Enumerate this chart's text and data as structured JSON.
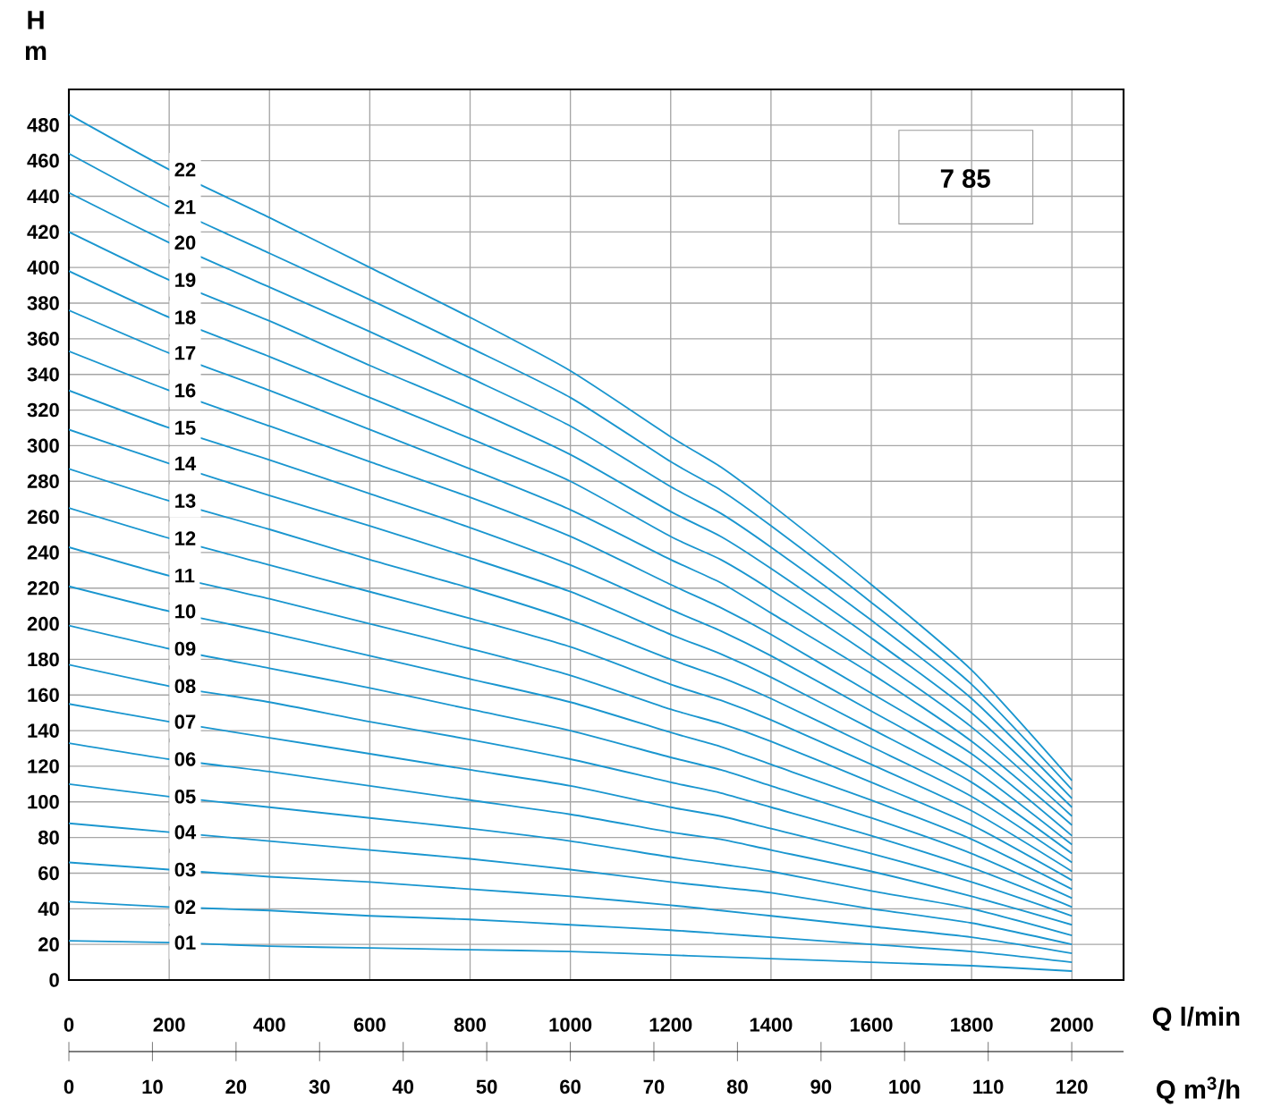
{
  "chart_data": {
    "type": "line",
    "xlabel": "Q l/min",
    "ylabel": "H m",
    "x2label": "Q m$^{3}$/h",
    "annotations": [
      "7 85"
    ],
    "x": [
      0,
      200,
      400,
      600,
      800,
      1000,
      1200,
      1300,
      1400,
      1600,
      1800,
      2000
    ],
    "xlim": [
      0,
      2103
    ],
    "ylim": [
      0,
      500
    ],
    "xticks": [
      0,
      200,
      400,
      600,
      800,
      1000,
      1200,
      1400,
      1600,
      1800,
      2000
    ],
    "yticks": [
      0,
      20,
      40,
      60,
      80,
      100,
      120,
      140,
      160,
      180,
      200,
      220,
      240,
      260,
      280,
      300,
      320,
      340,
      360,
      380,
      400,
      420,
      440,
      460,
      480
    ],
    "x2lim": [
      0,
      126.2
    ],
    "x2ticks": [
      0,
      10,
      20,
      30,
      40,
      50,
      60,
      70,
      80,
      90,
      100,
      110,
      120
    ],
    "grid": true,
    "marker": "none",
    "line_style": "solid",
    "series": [
      {
        "name": "01",
        "color": "#1a96cf",
        "values": [
          22,
          21,
          19,
          18,
          17,
          16,
          14,
          13,
          12,
          10,
          8,
          5
        ]
      },
      {
        "name": "02",
        "color": "#1a96cf",
        "values": [
          44,
          41,
          39,
          36,
          34,
          31,
          28,
          26,
          24,
          20,
          16,
          10
        ]
      },
      {
        "name": "03",
        "color": "#1a96cf",
        "values": [
          66,
          62,
          58,
          55,
          51,
          47,
          42,
          39,
          36,
          30,
          24,
          15
        ]
      },
      {
        "name": "04",
        "color": "#1a96cf",
        "values": [
          88,
          83,
          78,
          73,
          68,
          62,
          55,
          52,
          49,
          40,
          32,
          20
        ]
      },
      {
        "name": "05",
        "color": "#1a96cf",
        "values": [
          110,
          103,
          97,
          91,
          85,
          78,
          69,
          65,
          61,
          50,
          40,
          25
        ]
      },
      {
        "name": "06",
        "color": "#1a96cf",
        "values": [
          133,
          124,
          117,
          109,
          101,
          93,
          83,
          79,
          73,
          61,
          47,
          31
        ]
      },
      {
        "name": "07",
        "color": "#1a96cf",
        "values": [
          155,
          145,
          136,
          127,
          118,
          109,
          97,
          92,
          85,
          71,
          55,
          36
        ]
      },
      {
        "name": "08",
        "color": "#1a96cf",
        "values": [
          177,
          165,
          156,
          145,
          135,
          124,
          111,
          105,
          97,
          81,
          63,
          41
        ]
      },
      {
        "name": "09",
        "color": "#1a96cf",
        "values": [
          199,
          186,
          175,
          164,
          152,
          140,
          125,
          118,
          109,
          91,
          71,
          46
        ]
      },
      {
        "name": "10",
        "color": "#1a96cf",
        "values": [
          221,
          207,
          195,
          182,
          169,
          156,
          139,
          131,
          121,
          101,
          79,
          51
        ]
      },
      {
        "name": "11",
        "color": "#1a96cf",
        "values": [
          243,
          227,
          214,
          200,
          186,
          171,
          152,
          144,
          134,
          111,
          87,
          56
        ]
      },
      {
        "name": "12",
        "color": "#1a96cf",
        "values": [
          265,
          248,
          233,
          218,
          203,
          187,
          166,
          157,
          146,
          121,
          95,
          61
        ]
      },
      {
        "name": "13",
        "color": "#1a96cf",
        "values": [
          287,
          269,
          253,
          236,
          220,
          202,
          180,
          170,
          158,
          131,
          103,
          66
        ]
      },
      {
        "name": "14",
        "color": "#1a96cf",
        "values": [
          309,
          290,
          272,
          255,
          237,
          218,
          194,
          183,
          170,
          141,
          111,
          71
        ]
      },
      {
        "name": "15",
        "color": "#1a96cf",
        "values": [
          331,
          310,
          292,
          273,
          254,
          233,
          208,
          196,
          182,
          151,
          119,
          76
        ]
      },
      {
        "name": "16",
        "color": "#1a96cf",
        "values": [
          353,
          331,
          311,
          291,
          271,
          249,
          222,
          209,
          194,
          161,
          127,
          81
        ]
      },
      {
        "name": "17",
        "color": "#1a96cf",
        "values": [
          376,
          352,
          331,
          309,
          287,
          264,
          236,
          223,
          206,
          172,
          134,
          87
        ]
      },
      {
        "name": "18",
        "color": "#1a96cf",
        "values": [
          398,
          372,
          350,
          327,
          304,
          280,
          249,
          236,
          219,
          182,
          142,
          92
        ]
      },
      {
        "name": "19",
        "color": "#1a96cf",
        "values": [
          420,
          393,
          370,
          345,
          321,
          295,
          263,
          249,
          231,
          192,
          150,
          97
        ]
      },
      {
        "name": "20",
        "color": "#1a96cf",
        "values": [
          442,
          414,
          389,
          364,
          338,
          311,
          277,
          262,
          243,
          202,
          158,
          102
        ]
      },
      {
        "name": "21",
        "color": "#1a96cf",
        "values": [
          464,
          434,
          408,
          382,
          355,
          327,
          291,
          275,
          255,
          212,
          166,
          107
        ]
      },
      {
        "name": "22",
        "color": "#1a96cf",
        "values": [
          486,
          455,
          428,
          400,
          372,
          342,
          305,
          288,
          267,
          222,
          174,
          112
        ]
      }
    ]
  }
}
